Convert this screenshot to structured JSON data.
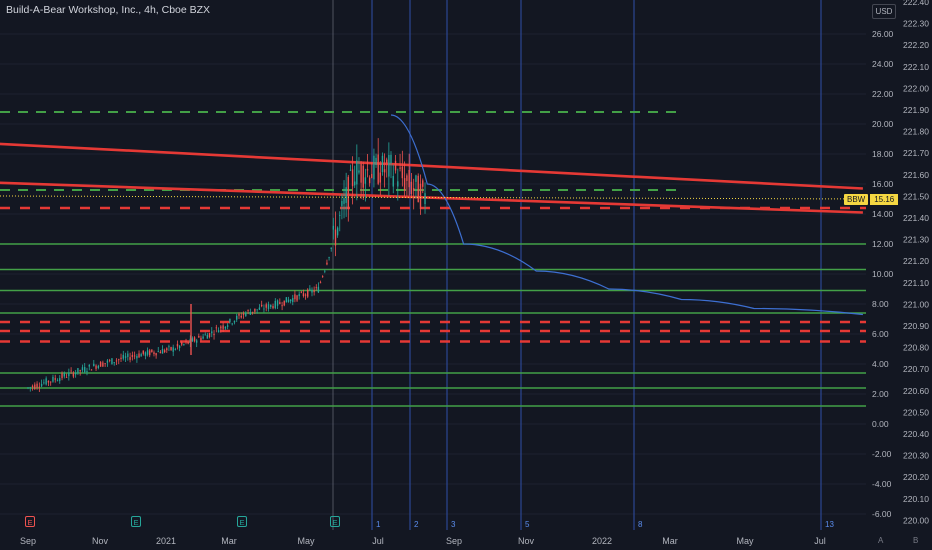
{
  "header": {
    "title": "Build-A-Bear Workshop, Inc., 4h, Cboe BZX",
    "currency": "USD"
  },
  "price_tag": {
    "label": "BBW",
    "value": "15.16"
  },
  "corner": {
    "auto": "A",
    "log": "B"
  },
  "earnings_badges": [
    "E",
    "E",
    "E",
    "E"
  ],
  "colors": {
    "background": "#131722",
    "candle_up": "#26a69a",
    "candle_down": "#ef5350",
    "red_line": "#e53935",
    "green_line": "#43a047",
    "blue_line": "#3d6fd1",
    "vertical_line": "#2f4fa8",
    "price_tag": "#f5d742"
  },
  "chart_data": {
    "type": "line",
    "x_ticks": [
      "Sep",
      "Nov",
      "2021",
      "Mar",
      "May",
      "Jul",
      "Sep",
      "Nov",
      "2022",
      "Mar",
      "May",
      "Jul"
    ],
    "left_axis": {
      "ticks": [
        "26.00",
        "24.00",
        "22.00",
        "20.00",
        "18.00",
        "16.00",
        "14.00",
        "12.00",
        "10.00",
        "8.00",
        "6.00",
        "4.00",
        "2.00",
        "0.00",
        "-2.00",
        "-4.00",
        "-6.00"
      ],
      "ylim": [
        -7,
        27.5
      ]
    },
    "right_axis": {
      "ticks": [
        "222.40",
        "222.30",
        "222.20",
        "222.10",
        "222.00",
        "221.90",
        "221.80",
        "221.70",
        "221.60",
        "221.50",
        "221.40",
        "221.30",
        "221.20",
        "221.10",
        "221.00",
        "220.90",
        "220.80",
        "220.70",
        "220.60",
        "220.50",
        "220.40",
        "220.30",
        "220.20",
        "220.10",
        "220.00"
      ]
    },
    "vertical_line_labels": [
      "1",
      "2",
      "3",
      "5",
      "8",
      "13"
    ],
    "price_series": {
      "name": "BBW",
      "points": [
        [
          "Sep 2020",
          2.4
        ],
        [
          "Oct 2020",
          3.2
        ],
        [
          "Nov 2020",
          4.0
        ],
        [
          "Dec 2020",
          4.6
        ],
        [
          "Jan 2021",
          5.0
        ],
        [
          "Feb 2021",
          6.0
        ],
        [
          "Mar 2021",
          7.4
        ],
        [
          "Apr 2021",
          8.1
        ],
        [
          "May 2021",
          9.0
        ],
        [
          "Jun 2021",
          16.8
        ],
        [
          "Jul 2021",
          17.0
        ],
        [
          "Aug 2021",
          15.0
        ]
      ]
    },
    "horizontal_levels": {
      "green_solid": [
        12.0,
        10.3,
        8.9,
        7.4,
        3.4,
        2.4,
        1.2
      ],
      "green_dashed": [
        20.8,
        15.6
      ],
      "red_dashed": [
        14.4,
        6.8,
        6.2,
        5.5
      ]
    },
    "trendlines_red": [
      {
        "from": [
          "Aug 2020",
          18.7
        ],
        "to": [
          "Aug 2022",
          15.7
        ]
      },
      {
        "from": [
          "Aug 2020",
          16.1
        ],
        "to": [
          "Aug 2022",
          14.1
        ]
      }
    ],
    "decay_curve_blue": [
      [
        "Jul 2021",
        20.6
      ],
      [
        "Aug 2021",
        16.0
      ],
      [
        "Sep 2021",
        12.0
      ],
      [
        "Nov 2021",
        10.2
      ],
      [
        "Jan 2022",
        9.0
      ],
      [
        "Mar 2022",
        8.3
      ],
      [
        "May 2022",
        7.7
      ],
      [
        "Aug 2022",
        7.3
      ]
    ]
  }
}
